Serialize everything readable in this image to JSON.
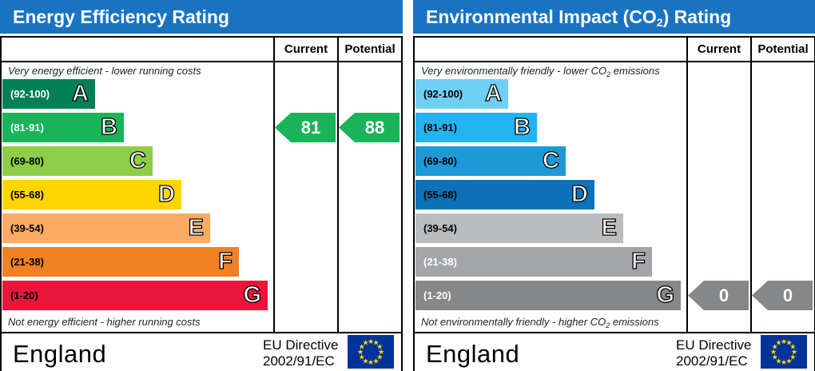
{
  "chart_data": [
    {
      "type": "bar",
      "title": "Energy Efficiency Rating",
      "columns": [
        "Current",
        "Potential"
      ],
      "top_note": "Very energy efficient - lower running costs",
      "bottom_note": "Not energy efficient - higher running costs",
      "bands": [
        {
          "range": "(92-100)",
          "letter": "A",
          "color": "#008054",
          "text_color": "#ffffff"
        },
        {
          "range": "(81-91)",
          "letter": "B",
          "color": "#19b459",
          "text_color": "#ffffff"
        },
        {
          "range": "(69-80)",
          "letter": "C",
          "color": "#8dce46",
          "text_color": "#000000"
        },
        {
          "range": "(55-68)",
          "letter": "D",
          "color": "#ffd500",
          "text_color": "#000000"
        },
        {
          "range": "(39-54)",
          "letter": "E",
          "color": "#fcaa65",
          "text_color": "#000000"
        },
        {
          "range": "(21-38)",
          "letter": "F",
          "color": "#ef8023",
          "text_color": "#000000"
        },
        {
          "range": "(1-20)",
          "letter": "G",
          "color": "#e9153b",
          "text_color": "#000000"
        }
      ],
      "current": {
        "value": "81",
        "band": "B",
        "color": "#19b459"
      },
      "potential": {
        "value": "88",
        "band": "B",
        "color": "#19b459"
      },
      "country": "England",
      "directive": [
        "EU Directive",
        "2002/91/EC"
      ]
    },
    {
      "type": "bar",
      "title_parts": [
        "Environmental Impact (CO",
        "2",
        ") Rating"
      ],
      "columns": [
        "Current",
        "Potential"
      ],
      "top_note_parts": [
        "Very environmentally friendly - lower CO",
        "2",
        " emissions"
      ],
      "bottom_note_parts": [
        "Not environmentally friendly - higher CO",
        "2",
        " emissions"
      ],
      "bands": [
        {
          "range": "(92-100)",
          "letter": "A",
          "color": "#6ecff6",
          "text_color": "#000000"
        },
        {
          "range": "(81-91)",
          "letter": "B",
          "color": "#23b3f1",
          "text_color": "#000000"
        },
        {
          "range": "(69-80)",
          "letter": "C",
          "color": "#1d99d6",
          "text_color": "#000000"
        },
        {
          "range": "(55-68)",
          "letter": "D",
          "color": "#0b72b8",
          "text_color": "#000000"
        },
        {
          "range": "(39-54)",
          "letter": "E",
          "color": "#bbbcbe",
          "text_color": "#000000"
        },
        {
          "range": "(21-38)",
          "letter": "F",
          "color": "#a3a5a8",
          "text_color": "#ffffff"
        },
        {
          "range": "(1-20)",
          "letter": "G",
          "color": "#868789",
          "text_color": "#ffffff"
        }
      ],
      "current": {
        "value": "0",
        "band": "G",
        "color": "#868789"
      },
      "potential": {
        "value": "0",
        "band": "G",
        "color": "#868789"
      },
      "country": "England",
      "directive": [
        "EU Directive",
        "2002/91/EC"
      ]
    }
  ],
  "colors": {
    "header": "#1a73c2",
    "eu_flag": "#003399",
    "eu_stars": "#ffdd00"
  }
}
